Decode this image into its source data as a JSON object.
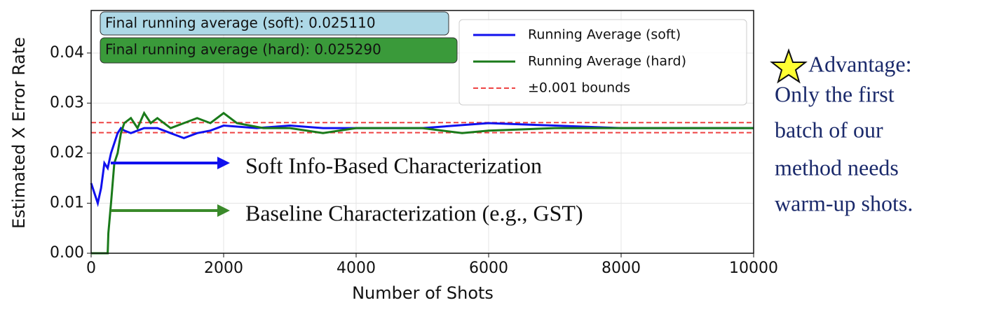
{
  "chart_data": {
    "type": "line",
    "xlabel": "Number of Shots",
    "ylabel": "Estimated X Error Rate",
    "xlim": [
      0,
      10000
    ],
    "xticks": [
      0,
      2000,
      4000,
      6000,
      8000,
      10000
    ],
    "ylim": [
      0,
      0.0485
    ],
    "yticks": [
      {
        "value": 0,
        "label": "0.00"
      },
      0.01,
      0.02,
      0.03,
      0.04
    ],
    "grid": true,
    "series": [
      {
        "name": "Running Average (soft)",
        "color": "#1010ee",
        "x": [
          0,
          50,
          100,
          150,
          200,
          250,
          300,
          350,
          400,
          450,
          500,
          600,
          700,
          800,
          1000,
          1200,
          1400,
          1600,
          1800,
          2000,
          2500,
          3000,
          3500,
          4000,
          5000,
          6000,
          7000,
          8000,
          9000,
          10000
        ],
        "values": [
          0.014,
          0.012,
          0.01,
          0.013,
          0.018,
          0.017,
          0.02,
          0.022,
          0.024,
          0.025,
          0.0245,
          0.024,
          0.0245,
          0.025,
          0.025,
          0.024,
          0.023,
          0.024,
          0.0245,
          0.0255,
          0.025,
          0.0255,
          0.025,
          0.025,
          0.025,
          0.026,
          0.0255,
          0.025,
          0.025,
          0.025
        ]
      },
      {
        "name": "Running Average (hard)",
        "color": "#1a7a1a",
        "x": [
          0,
          250,
          260,
          300,
          350,
          400,
          450,
          500,
          600,
          700,
          800,
          900,
          1000,
          1200,
          1400,
          1600,
          1800,
          2000,
          2200,
          2600,
          3000,
          3500,
          4000,
          5000,
          5600,
          6000,
          7000,
          8000,
          9000,
          10000
        ],
        "values": [
          0,
          0,
          0.004,
          0.01,
          0.018,
          0.02,
          0.024,
          0.026,
          0.027,
          0.025,
          0.028,
          0.026,
          0.027,
          0.025,
          0.026,
          0.027,
          0.026,
          0.028,
          0.026,
          0.025,
          0.025,
          0.024,
          0.025,
          0.025,
          0.024,
          0.0245,
          0.025,
          0.025,
          0.025,
          0.025
        ]
      }
    ],
    "bounds": {
      "name": "±0.001 bounds",
      "color": "#ee4444",
      "values": [
        0.0241,
        0.0261
      ]
    },
    "legend": "upper right",
    "annotations": [
      "Final running average (soft): 0.025110",
      "Final running average (hard): 0.025290",
      "Soft Info-Based Characterization",
      "Baseline Characterization (e.g., GST)"
    ],
    "side_text": [
      "Advantage:",
      "Only the first",
      "batch of our",
      "method needs",
      "warm-up shots."
    ]
  }
}
